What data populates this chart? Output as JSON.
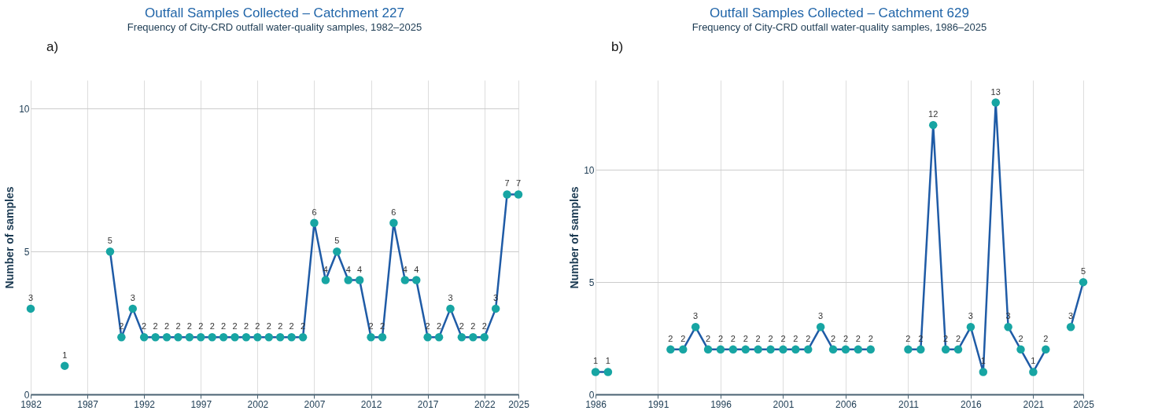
{
  "chart_data": [
    {
      "type": "line",
      "title": "Outfall Samples Collected – Catchment 227",
      "subtitle": "Frequency of City-CRD outfall water-quality samples, 1982–2025",
      "ylabel": "Number of samples",
      "annotations": [
        "a)"
      ],
      "x": [
        1982,
        1983,
        1984,
        1985,
        1986,
        1987,
        1988,
        1989,
        1990,
        1991,
        1992,
        1993,
        1994,
        1995,
        1996,
        1997,
        1998,
        1999,
        2000,
        2001,
        2002,
        2003,
        2004,
        2005,
        2006,
        2007,
        2008,
        2009,
        2010,
        2011,
        2012,
        2013,
        2014,
        2015,
        2016,
        2017,
        2018,
        2019,
        2020,
        2021,
        2022,
        2023,
        2024,
        2025
      ],
      "series": [
        {
          "color": "#1f5ba6",
          "colors": [
            "#17a5a3",
            "#17a5a3",
            "#17a5a3",
            "#17a5a3",
            "#17a5a3",
            "#17a5a3",
            "#17a5a3",
            "#17a5a3",
            "#17a5a3",
            "#17a5a3",
            "#17a5a3",
            "#17a5a3",
            "#17a5a3",
            "#17a5a3",
            "#17a5a3",
            "#17a5a3",
            "#17a5a3",
            "#17a5a3",
            "#17a5a3",
            "#17a5a3",
            "#17a5a3",
            "#17a5a3",
            "#17a5a3",
            "#17a5a3",
            "#17a5a3",
            "#17a5a3",
            "#17a5a3",
            "#17a5a3",
            "#17a5a3",
            "#17a5a3",
            "#17a5a3",
            "#17a5a3",
            "#17a5a3",
            "#17a5a3",
            "#17a5a3",
            "#17a5a3",
            "#17a5a3",
            "#17a5a3",
            "#17a5a3",
            "#17a5a3",
            "#17a5a3",
            "#17a5a3",
            "#17a5a3",
            "#17a5a3"
          ],
          "values": [
            3,
            null,
            null,
            1,
            null,
            null,
            null,
            5,
            2,
            3,
            2,
            2,
            2,
            2,
            2,
            2,
            2,
            2,
            2,
            2,
            2,
            2,
            2,
            2,
            2,
            6,
            4,
            5,
            4,
            4,
            2,
            2,
            6,
            4,
            4,
            2,
            2,
            3,
            2,
            2,
            2,
            3,
            7,
            7
          ]
        }
      ],
      "xlim": [
        1982,
        2025
      ],
      "xticks": [
        1982,
        1987,
        1992,
        1997,
        2002,
        2007,
        2012,
        2017,
        2022,
        2025
      ],
      "ylim": [
        0,
        11
      ],
      "yticks": [
        0,
        5,
        10
      ],
      "grid": true,
      "marker": "circle",
      "data_labels": true
    },
    {
      "type": "line",
      "title": "Outfall Samples Collected – Catchment 629",
      "subtitle": "Frequency of City-CRD outfall water-quality samples, 1986–2025",
      "ylabel": "Number of samples",
      "annotations": [
        "b)"
      ],
      "x": [
        1986,
        1987,
        1988,
        1989,
        1990,
        1991,
        1992,
        1993,
        1994,
        1995,
        1996,
        1997,
        1998,
        1999,
        2000,
        2001,
        2002,
        2003,
        2004,
        2005,
        2006,
        2007,
        2008,
        2009,
        2010,
        2011,
        2012,
        2013,
        2014,
        2015,
        2016,
        2017,
        2018,
        2019,
        2020,
        2021,
        2022,
        2023,
        2024,
        2025
      ],
      "series": [
        {
          "color": "#1f5ba6",
          "colors": [
            "#17a5a3",
            "#17a5a3",
            "#17a5a3",
            "#17a5a3",
            "#17a5a3",
            "#17a5a3",
            "#17a5a3",
            "#17a5a3",
            "#17a5a3",
            "#17a5a3",
            "#17a5a3",
            "#17a5a3",
            "#17a5a3",
            "#17a5a3",
            "#17a5a3",
            "#17a5a3",
            "#17a5a3",
            "#17a5a3",
            "#17a5a3",
            "#17a5a3",
            "#17a5a3",
            "#17a5a3",
            "#17a5a3",
            "#17a5a3",
            "#17a5a3",
            "#17a5a3",
            "#17a5a3",
            "#17a5a3",
            "#17a5a3",
            "#17a5a3",
            "#17a5a3",
            "#17a5a3",
            "#17a5a3",
            "#17a5a3",
            "#17a5a3",
            "#17a5a3",
            "#17a5a3",
            "#17a5a3",
            "#17a5a3",
            "#17a5a3"
          ],
          "values": [
            1,
            1,
            null,
            null,
            null,
            null,
            2,
            2,
            3,
            2,
            2,
            2,
            2,
            2,
            2,
            2,
            2,
            2,
            3,
            2,
            2,
            2,
            2,
            null,
            null,
            2,
            2,
            12,
            2,
            2,
            3,
            1,
            13,
            3,
            2,
            1,
            2,
            null,
            3,
            5
          ]
        }
      ],
      "xlim": [
        1986,
        2025
      ],
      "xticks": [
        1986,
        1991,
        1996,
        2001,
        2006,
        2011,
        2016,
        2021,
        2025
      ],
      "ylim": [
        0,
        14
      ],
      "yticks": [
        0,
        5,
        10
      ],
      "grid": true,
      "marker": "circle",
      "data_labels": true
    }
  ]
}
